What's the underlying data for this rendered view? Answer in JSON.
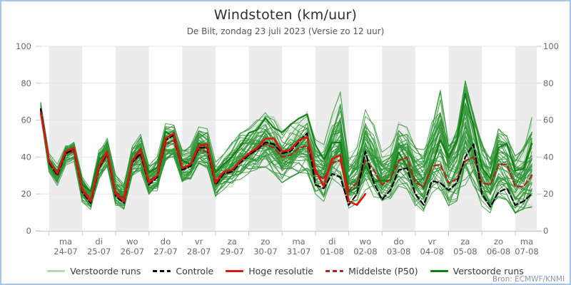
{
  "header": {
    "title": "Windstoten (km/uur)",
    "subtitle": "De Bilt, zondag 23 juli 2023 (Versie zo 12 uur)"
  },
  "source": {
    "label": "Bron: ECMWF/KNMI"
  },
  "colors": {
    "frame_border": "#a7c3e5",
    "day_band": "#ececec",
    "grid": "#e5e5e5",
    "axis": "#b9c9de",
    "tick_label": "#6a6a6a",
    "ensemble": "#2e9434",
    "ensemble_light": "#b4dab4",
    "ensemble_dark": "#0f7c12",
    "control": "#000000",
    "hires": "#e01212",
    "median": "#b22222"
  },
  "legend": [
    {
      "label": "Verstoorde runs",
      "color": "#b4dab4",
      "style": "solid"
    },
    {
      "label": "Controle",
      "color": "#000000",
      "style": "dashed"
    },
    {
      "label": "Hoge resolutie",
      "color": "#e01212",
      "style": "solid"
    },
    {
      "label": "Middelste (P50)",
      "color": "#b22222",
      "style": "dashed"
    },
    {
      "label": "Verstoorde runs",
      "color": "#0f7c12",
      "style": "solid"
    }
  ],
  "chart_data": {
    "type": "line",
    "title": "Windstoten (km/uur)",
    "subtitle": "De Bilt, zondag 23 juli 2023 (Versie zo 12 uur)",
    "ylabel": "km/uur",
    "ylim": [
      0,
      100
    ],
    "yticks": [
      0,
      20,
      40,
      60,
      80,
      100
    ],
    "grid": true,
    "legend_position": "bottom",
    "time_step_hours": 6,
    "start_hour_offset": -6,
    "x_days": [
      {
        "dow": "ma",
        "date": "24-07"
      },
      {
        "dow": "di",
        "date": "25-07"
      },
      {
        "dow": "wo",
        "date": "26-07"
      },
      {
        "dow": "do",
        "date": "27-07"
      },
      {
        "dow": "vr",
        "date": "28-07"
      },
      {
        "dow": "za",
        "date": "29-07"
      },
      {
        "dow": "zo",
        "date": "30-07"
      },
      {
        "dow": "ma",
        "date": "31-07"
      },
      {
        "dow": "di",
        "date": "01-08"
      },
      {
        "dow": "wo",
        "date": "02-08"
      },
      {
        "dow": "do",
        "date": "03-08"
      },
      {
        "dow": "vr",
        "date": "04-08"
      },
      {
        "dow": "za",
        "date": "05-08"
      },
      {
        "dow": "zo",
        "date": "06-08"
      },
      {
        "dow": "ma",
        "date": "07-08"
      }
    ],
    "series": [
      {
        "name": "Hoge resolutie",
        "style": "solid",
        "color": "#e01212",
        "values": [
          64,
          38,
          31,
          43,
          45,
          22,
          16,
          35,
          43,
          20,
          16,
          38,
          44,
          26,
          30,
          50,
          53,
          34,
          36,
          46,
          47,
          26,
          32,
          33,
          38,
          42,
          45,
          50,
          50,
          43,
          44,
          49,
          51,
          33,
          24,
          39,
          41,
          16,
          14,
          20
        ]
      },
      {
        "name": "Controle",
        "style": "dashed",
        "color": "#000000",
        "values": [
          66,
          37,
          30,
          42,
          44,
          21,
          15,
          34,
          42,
          19,
          15,
          37,
          42,
          25,
          29,
          49,
          52,
          33,
          35,
          45,
          45,
          25,
          31,
          32,
          37,
          41,
          44,
          48,
          47,
          42,
          43,
          48,
          53,
          25,
          23,
          31,
          29,
          14,
          20,
          43,
          26,
          17,
          22,
          33,
          34,
          20,
          14,
          27,
          26,
          22,
          26,
          40,
          47,
          20,
          13,
          21,
          23,
          14,
          16,
          20
        ]
      },
      {
        "name": "Middelste (P50)",
        "style": "dashed",
        "color": "#b22222",
        "values": [
          66,
          38,
          31,
          42,
          43,
          23,
          17,
          34,
          41,
          21,
          18,
          37,
          41,
          27,
          30,
          47,
          49,
          34,
          36,
          44,
          43,
          27,
          32,
          33,
          38,
          41,
          44,
          47,
          45,
          40,
          41,
          45,
          46,
          31,
          28,
          37,
          38,
          22,
          26,
          38,
          33,
          25,
          28,
          38,
          40,
          26,
          24,
          35,
          36,
          26,
          28,
          38,
          40,
          26,
          25,
          36,
          36,
          24,
          24,
          30
        ]
      }
    ],
    "ensemble": {
      "name": "Verstoorde runs",
      "count": 48,
      "light_count": 10,
      "seed": 7,
      "envelope_min": [
        63,
        32,
        25,
        36,
        38,
        16,
        12,
        28,
        34,
        14,
        12,
        30,
        33,
        20,
        22,
        38,
        40,
        26,
        28,
        36,
        34,
        18,
        22,
        24,
        28,
        30,
        32,
        34,
        30,
        26,
        28,
        30,
        30,
        20,
        16,
        24,
        24,
        12,
        14,
        22,
        18,
        14,
        16,
        24,
        22,
        13,
        10,
        20,
        16,
        13,
        16,
        22,
        22,
        13,
        9,
        18,
        16,
        9,
        11,
        12
      ],
      "envelope_max": [
        70,
        42,
        36,
        48,
        50,
        30,
        24,
        44,
        52,
        30,
        26,
        46,
        52,
        36,
        40,
        58,
        58,
        44,
        46,
        56,
        56,
        38,
        42,
        48,
        54,
        56,
        60,
        65,
        62,
        55,
        58,
        62,
        65,
        50,
        48,
        65,
        76,
        42,
        46,
        66,
        58,
        44,
        46,
        60,
        56,
        46,
        44,
        60,
        77,
        50,
        56,
        82,
        64,
        48,
        40,
        56,
        52,
        42,
        46,
        65
      ]
    }
  }
}
